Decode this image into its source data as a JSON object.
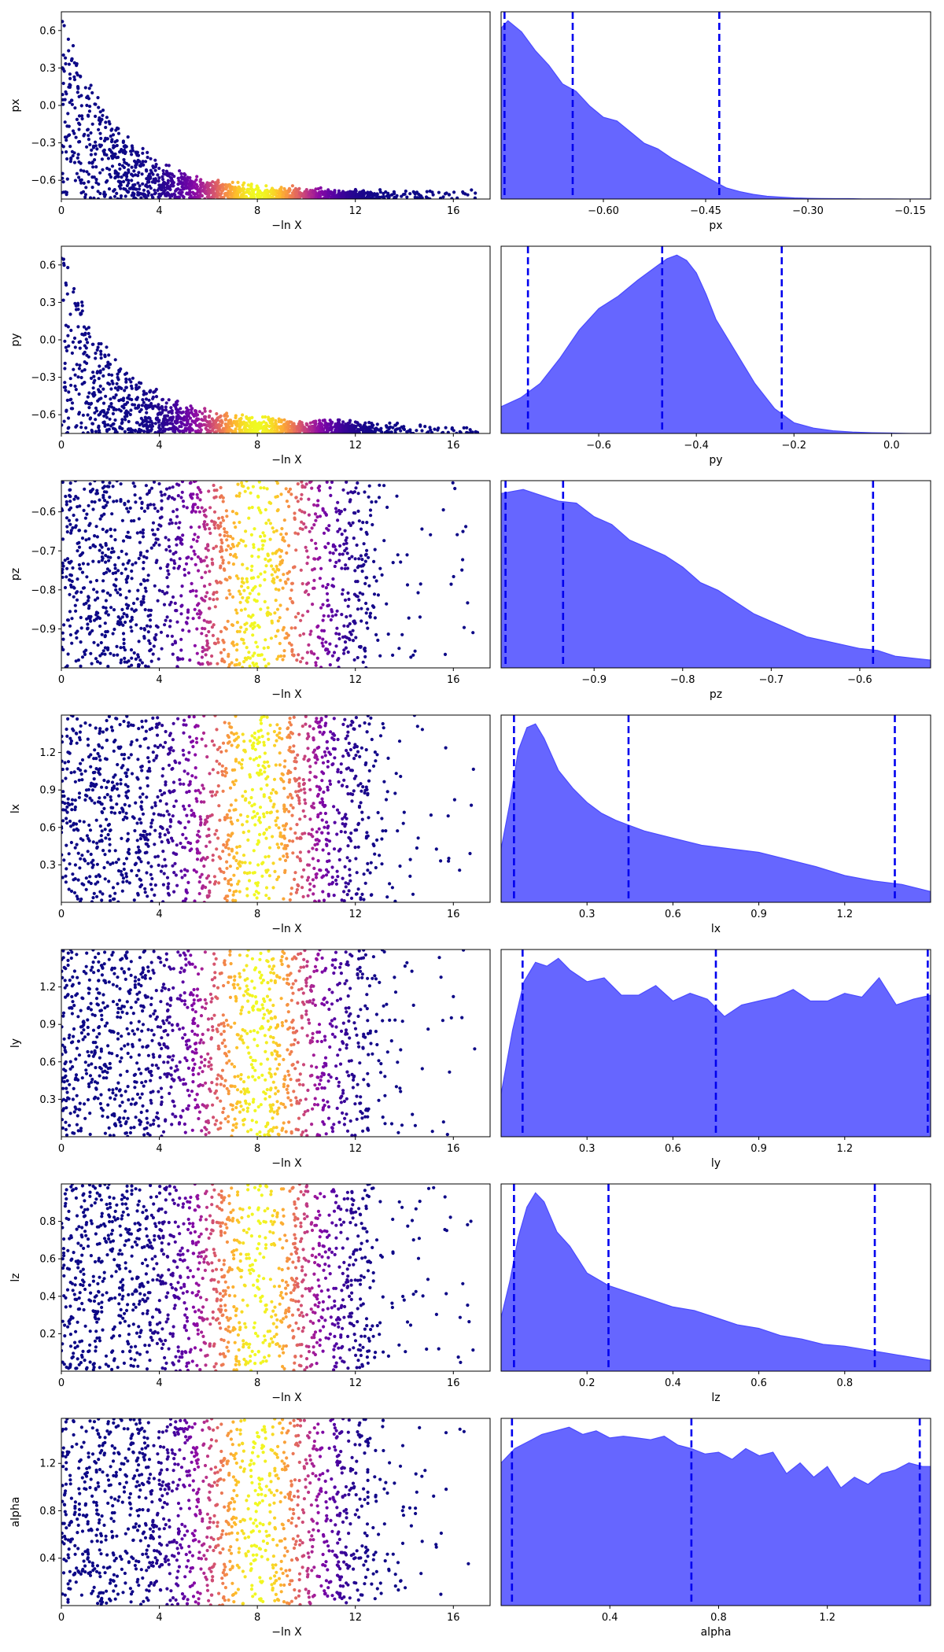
{
  "chart_data": [
    {
      "variable": "px",
      "trace": {
        "type": "scatter",
        "xlabel": "−ln X",
        "ylabel": "px",
        "xlim": [
          0,
          17.5
        ],
        "ylim": [
          -0.75,
          0.75
        ],
        "xticks": [
          "0",
          "4",
          "8",
          "12",
          "16"
        ],
        "yticks": [
          "0.6",
          "0.3",
          "0.0",
          "−0.3",
          "−0.6"
        ],
        "colormap": "plasma",
        "peak_x": 8.0,
        "peak_width": 1.6,
        "max_x": 17,
        "envelope": {
          "kind": "decay",
          "start": 0.75,
          "end": -0.72,
          "rate": 0.45
        },
        "n_points": 1400
      },
      "posterior": {
        "type": "area",
        "xlabel": "px",
        "xlim": [
          -0.75,
          -0.12
        ],
        "xticks": [
          "−0.60",
          "−0.45",
          "−0.30",
          "−0.15"
        ],
        "quantiles": [
          -0.745,
          -0.645,
          -0.43
        ],
        "x": [
          -0.75,
          -0.74,
          -0.72,
          -0.7,
          -0.68,
          -0.66,
          -0.64,
          -0.62,
          -0.6,
          -0.58,
          -0.56,
          -0.54,
          -0.52,
          -0.5,
          -0.48,
          -0.46,
          -0.44,
          -0.42,
          -0.4,
          -0.38,
          -0.36,
          -0.34,
          -0.32,
          -0.3,
          -0.28,
          -0.26,
          -0.24,
          -0.22,
          -0.2,
          -0.18,
          -0.16,
          -0.14,
          -0.12
        ],
        "density": [
          0.92,
          0.96,
          0.9,
          0.8,
          0.72,
          0.62,
          0.58,
          0.5,
          0.44,
          0.42,
          0.36,
          0.3,
          0.27,
          0.22,
          0.18,
          0.14,
          0.1,
          0.06,
          0.04,
          0.025,
          0.015,
          0.01,
          0.006,
          0.004,
          0.003,
          0.002,
          0.002,
          0.001,
          0.001,
          0.001,
          0.0,
          0.0,
          0.0
        ]
      }
    },
    {
      "variable": "py",
      "trace": {
        "type": "scatter",
        "xlabel": "−ln X",
        "ylabel": "py",
        "xlim": [
          0,
          17.5
        ],
        "ylim": [
          -0.75,
          0.75
        ],
        "xticks": [
          "0",
          "4",
          "8",
          "12",
          "16"
        ],
        "yticks": [
          "0.6",
          "0.3",
          "0.0",
          "−0.3",
          "−0.6"
        ],
        "colormap": "plasma",
        "peak_x": 8.0,
        "peak_width": 1.6,
        "max_x": 17,
        "envelope": {
          "kind": "decay",
          "start": 0.75,
          "end": -0.7,
          "rate": 0.45
        },
        "n_points": 1400
      },
      "posterior": {
        "type": "area",
        "xlabel": "py",
        "xlim": [
          -0.8,
          0.08
        ],
        "xticks": [
          "−0.6",
          "−0.4",
          "−0.2",
          "0.0"
        ],
        "quantiles": [
          -0.745,
          -0.47,
          -0.225
        ],
        "x": [
          -0.8,
          -0.76,
          -0.72,
          -0.68,
          -0.64,
          -0.6,
          -0.56,
          -0.52,
          -0.48,
          -0.46,
          -0.44,
          -0.42,
          -0.4,
          -0.38,
          -0.36,
          -0.32,
          -0.28,
          -0.24,
          -0.2,
          -0.16,
          -0.12,
          -0.08,
          -0.04,
          0.0,
          0.04,
          0.08
        ],
        "density": [
          0.15,
          0.2,
          0.28,
          0.42,
          0.58,
          0.7,
          0.77,
          0.86,
          0.94,
          0.98,
          1.0,
          0.97,
          0.9,
          0.78,
          0.64,
          0.46,
          0.28,
          0.14,
          0.06,
          0.03,
          0.015,
          0.008,
          0.004,
          0.002,
          0.0,
          0.0
        ]
      }
    },
    {
      "variable": "pz",
      "trace": {
        "type": "scatter",
        "xlabel": "−ln X",
        "ylabel": "pz",
        "xlim": [
          0,
          17.5
        ],
        "ylim": [
          -1.0,
          -0.52
        ],
        "xticks": [
          "0",
          "4",
          "8",
          "12",
          "16"
        ],
        "yticks": [
          "−0.6",
          "−0.7",
          "−0.8",
          "−0.9"
        ],
        "colormap": "plasma",
        "peak_x": 8.0,
        "peak_width": 1.6,
        "max_x": 17,
        "envelope": {
          "kind": "uniform"
        },
        "n_points": 1500
      },
      "posterior": {
        "type": "area",
        "xlabel": "pz",
        "xlim": [
          -1.005,
          -0.52
        ],
        "xticks": [
          "−0.9",
          "−0.8",
          "−0.7",
          "−0.6"
        ],
        "quantiles": [
          -1.0,
          -0.935,
          -0.585
        ],
        "x": [
          -1.005,
          -0.98,
          -0.96,
          -0.94,
          -0.92,
          -0.9,
          -0.88,
          -0.86,
          -0.84,
          -0.82,
          -0.8,
          -0.78,
          -0.76,
          -0.74,
          -0.72,
          -0.7,
          -0.68,
          -0.66,
          -0.64,
          -0.62,
          -0.6,
          -0.58,
          -0.56,
          -0.54,
          -0.52
        ],
        "density": [
          0.9,
          0.92,
          0.89,
          0.86,
          0.85,
          0.78,
          0.74,
          0.66,
          0.62,
          0.58,
          0.52,
          0.44,
          0.4,
          0.34,
          0.28,
          0.24,
          0.2,
          0.16,
          0.14,
          0.12,
          0.1,
          0.09,
          0.06,
          0.05,
          0.04
        ]
      }
    },
    {
      "variable": "lx",
      "trace": {
        "type": "scatter",
        "xlabel": "−ln X",
        "ylabel": "lx",
        "xlim": [
          0,
          17.5
        ],
        "ylim": [
          0.0,
          1.5
        ],
        "xticks": [
          "0",
          "4",
          "8",
          "12",
          "16"
        ],
        "yticks": [
          "1.2",
          "0.9",
          "0.6",
          "0.3"
        ],
        "colormap": "plasma",
        "peak_x": 8.0,
        "peak_width": 1.6,
        "max_x": 17,
        "envelope": {
          "kind": "uniform"
        },
        "n_points": 1500
      },
      "posterior": {
        "type": "area",
        "xlabel": "lx",
        "xlim": [
          0.0,
          1.5
        ],
        "xticks": [
          "0.3",
          "0.6",
          "0.9",
          "1.2"
        ],
        "quantiles": [
          0.045,
          0.445,
          1.375
        ],
        "x": [
          0.0,
          0.03,
          0.06,
          0.09,
          0.12,
          0.15,
          0.2,
          0.25,
          0.3,
          0.35,
          0.4,
          0.45,
          0.5,
          0.6,
          0.7,
          0.8,
          0.9,
          1.0,
          1.1,
          1.2,
          1.3,
          1.4,
          1.5
        ],
        "density": [
          0.3,
          0.55,
          0.85,
          0.98,
          1.0,
          0.92,
          0.74,
          0.64,
          0.56,
          0.5,
          0.46,
          0.43,
          0.4,
          0.36,
          0.32,
          0.3,
          0.28,
          0.24,
          0.2,
          0.15,
          0.12,
          0.1,
          0.06
        ]
      }
    },
    {
      "variable": "ly",
      "trace": {
        "type": "scatter",
        "xlabel": "−ln X",
        "ylabel": "ly",
        "xlim": [
          0,
          17.5
        ],
        "ylim": [
          0.0,
          1.5
        ],
        "xticks": [
          "0",
          "4",
          "8",
          "12",
          "16"
        ],
        "yticks": [
          "1.2",
          "0.9",
          "0.6",
          "0.3"
        ],
        "colormap": "plasma",
        "peak_x": 8.0,
        "peak_width": 1.6,
        "max_x": 17,
        "envelope": {
          "kind": "uniform"
        },
        "n_points": 1500
      },
      "posterior": {
        "type": "area",
        "xlabel": "ly",
        "xlim": [
          0.0,
          1.5
        ],
        "xticks": [
          "0.3",
          "0.6",
          "0.9",
          "1.2"
        ],
        "quantiles": [
          0.075,
          0.75,
          1.49
        ],
        "x": [
          0.0,
          0.04,
          0.08,
          0.12,
          0.16,
          0.2,
          0.24,
          0.3,
          0.36,
          0.42,
          0.48,
          0.54,
          0.6,
          0.66,
          0.72,
          0.78,
          0.84,
          0.9,
          0.96,
          1.02,
          1.08,
          1.14,
          1.2,
          1.26,
          1.32,
          1.38,
          1.44,
          1.5
        ],
        "density": [
          0.22,
          0.55,
          0.8,
          0.9,
          0.88,
          0.92,
          0.86,
          0.8,
          0.82,
          0.73,
          0.73,
          0.78,
          0.7,
          0.74,
          0.71,
          0.62,
          0.68,
          0.7,
          0.72,
          0.76,
          0.7,
          0.7,
          0.74,
          0.72,
          0.82,
          0.68,
          0.71,
          0.73
        ]
      }
    },
    {
      "variable": "lz",
      "trace": {
        "type": "scatter",
        "xlabel": "−ln X",
        "ylabel": "lz",
        "xlim": [
          0,
          17.5
        ],
        "ylim": [
          0.0,
          1.0
        ],
        "xticks": [
          "0",
          "4",
          "8",
          "12",
          "16"
        ],
        "yticks": [
          "0.8",
          "0.6",
          "0.4",
          "0.2"
        ],
        "colormap": "plasma",
        "peak_x": 8.0,
        "peak_width": 1.6,
        "max_x": 17,
        "envelope": {
          "kind": "uniform"
        },
        "n_points": 1500
      },
      "posterior": {
        "type": "area",
        "xlabel": "lz",
        "xlim": [
          0.0,
          1.0
        ],
        "xticks": [
          "0.2",
          "0.4",
          "0.6",
          "0.8"
        ],
        "quantiles": [
          0.03,
          0.25,
          0.87
        ],
        "x": [
          0.0,
          0.02,
          0.04,
          0.06,
          0.08,
          0.1,
          0.13,
          0.16,
          0.2,
          0.25,
          0.3,
          0.35,
          0.4,
          0.45,
          0.5,
          0.55,
          0.6,
          0.65,
          0.7,
          0.75,
          0.8,
          0.85,
          0.9,
          0.95,
          1.0
        ],
        "density": [
          0.3,
          0.5,
          0.75,
          0.92,
          1.0,
          0.95,
          0.78,
          0.7,
          0.55,
          0.48,
          0.44,
          0.4,
          0.36,
          0.34,
          0.3,
          0.26,
          0.24,
          0.2,
          0.18,
          0.15,
          0.14,
          0.12,
          0.1,
          0.08,
          0.06
        ]
      }
    },
    {
      "variable": "alpha",
      "trace": {
        "type": "scatter",
        "xlabel": "−ln X",
        "ylabel": "alpha",
        "xlim": [
          0,
          17.5
        ],
        "ylim": [
          0.0,
          1.58
        ],
        "xticks": [
          "0",
          "4",
          "8",
          "12",
          "16"
        ],
        "yticks": [
          "1.2",
          "0.8",
          "0.4"
        ],
        "colormap": "plasma",
        "peak_x": 8.0,
        "peak_width": 1.6,
        "max_x": 17,
        "envelope": {
          "kind": "uniform"
        },
        "n_points": 1500
      },
      "posterior": {
        "type": "area",
        "xlabel": "alpha",
        "xlim": [
          0.0,
          1.58
        ],
        "xticks": [
          "0.4",
          "0.8",
          "1.2"
        ],
        "quantiles": [
          0.04,
          0.7,
          1.54
        ],
        "x": [
          0.0,
          0.05,
          0.1,
          0.15,
          0.2,
          0.25,
          0.3,
          0.35,
          0.4,
          0.45,
          0.5,
          0.55,
          0.6,
          0.65,
          0.7,
          0.75,
          0.8,
          0.85,
          0.9,
          0.95,
          1.0,
          1.05,
          1.1,
          1.15,
          1.2,
          1.25,
          1.3,
          1.35,
          1.4,
          1.45,
          1.5,
          1.55,
          1.58
        ],
        "density": [
          0.8,
          0.88,
          0.92,
          0.96,
          0.98,
          1.0,
          0.96,
          0.98,
          0.94,
          0.95,
          0.94,
          0.93,
          0.95,
          0.9,
          0.88,
          0.85,
          0.86,
          0.82,
          0.88,
          0.84,
          0.86,
          0.74,
          0.8,
          0.72,
          0.78,
          0.66,
          0.72,
          0.68,
          0.74,
          0.76,
          0.8,
          0.78,
          0.78
        ]
      }
    }
  ]
}
